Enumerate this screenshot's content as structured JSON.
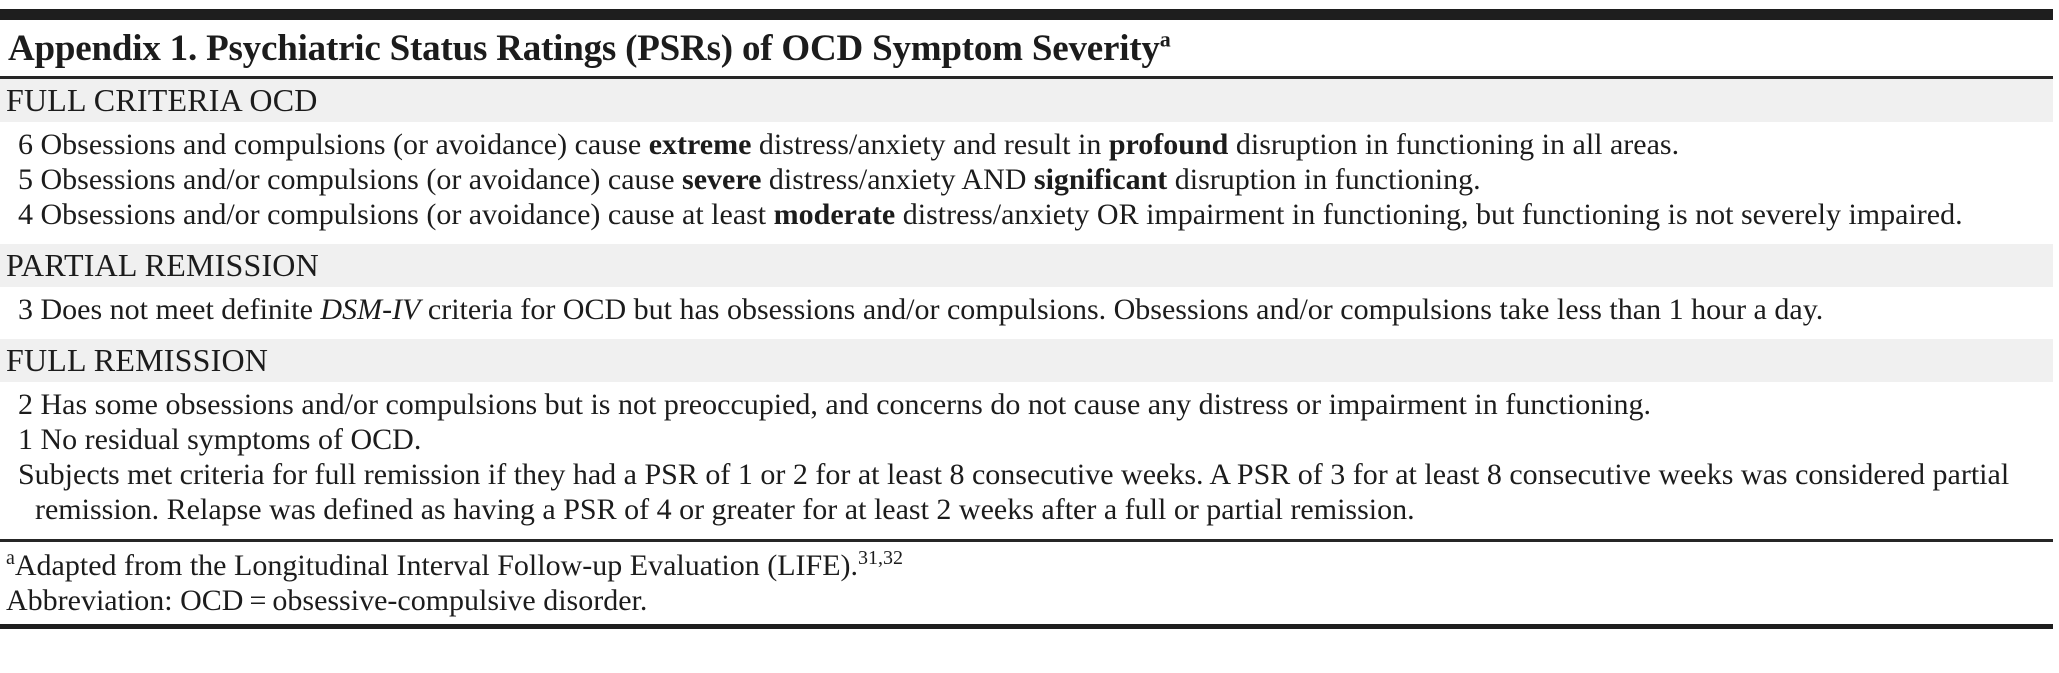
{
  "document": {
    "title": {
      "text": "Appendix 1. Psychiatric Status Ratings (PSRs) of OCD Symptom Severity",
      "footnote_marker": "a"
    },
    "sections": [
      {
        "header": "FULL CRITERIA OCD",
        "items": [
          {
            "number": "6",
            "segments": [
              {
                "t": "Obsessions and compulsions (or avoidance) cause "
              },
              {
                "t": "extreme",
                "b": true
              },
              {
                "t": " distress/anxiety and result in "
              },
              {
                "t": "profound",
                "b": true
              },
              {
                "t": " disruption in functioning in all areas."
              }
            ]
          },
          {
            "number": "5",
            "segments": [
              {
                "t": "Obsessions and/or compulsions (or avoidance) cause "
              },
              {
                "t": "severe",
                "b": true
              },
              {
                "t": " distress/anxiety AND "
              },
              {
                "t": "significant",
                "b": true
              },
              {
                "t": " disruption in functioning."
              }
            ]
          },
          {
            "number": "4",
            "segments": [
              {
                "t": "Obsessions and/or compulsions (or avoidance) cause at least "
              },
              {
                "t": "moderate",
                "b": true
              },
              {
                "t": " distress/anxiety OR impairment in functioning, but functioning is not severely impaired."
              }
            ]
          }
        ]
      },
      {
        "header": "PARTIAL REMISSION",
        "items": [
          {
            "number": "3",
            "segments": [
              {
                "t": "Does not meet definite "
              },
              {
                "t": "DSM-IV",
                "i": true
              },
              {
                "t": " criteria for OCD but has obsessions and/or compulsions. Obsessions and/or compulsions take less than 1 hour a day."
              }
            ]
          }
        ]
      },
      {
        "header": "FULL REMISSION",
        "items": [
          {
            "number": "2",
            "segments": [
              {
                "t": "Has some obsessions and/or compulsions but is not preoccupied, and concerns do not cause any distress or impairment in functioning."
              }
            ]
          },
          {
            "number": "1",
            "segments": [
              {
                "t": "No residual symptoms of OCD."
              }
            ]
          },
          {
            "number": "",
            "segments": [
              {
                "t": "Subjects met criteria for full remission if they had a PSR of 1 or 2 for at least 8 consecutive weeks. A PSR of 3 for at least 8 consecutive weeks was considered partial remission. Relapse was defined as having a PSR of 4 or greater for at least 2 weeks after a full or partial remission."
              }
            ]
          }
        ]
      }
    ],
    "footnotes": [
      {
        "segments": [
          {
            "t": "a",
            "sup": true
          },
          {
            "t": "Adapted from the Longitudinal Interval Follow-up Evaluation (LIFE)."
          },
          {
            "t": "31,32",
            "sup": true
          }
        ]
      },
      {
        "segments": [
          {
            "t": "Abbreviation: OCD = obsessive-compulsive disorder."
          }
        ]
      }
    ],
    "colors": {
      "band_background": "#f0f0f0",
      "text": "#1c1c1c",
      "rule": "#1e1e1e"
    }
  }
}
